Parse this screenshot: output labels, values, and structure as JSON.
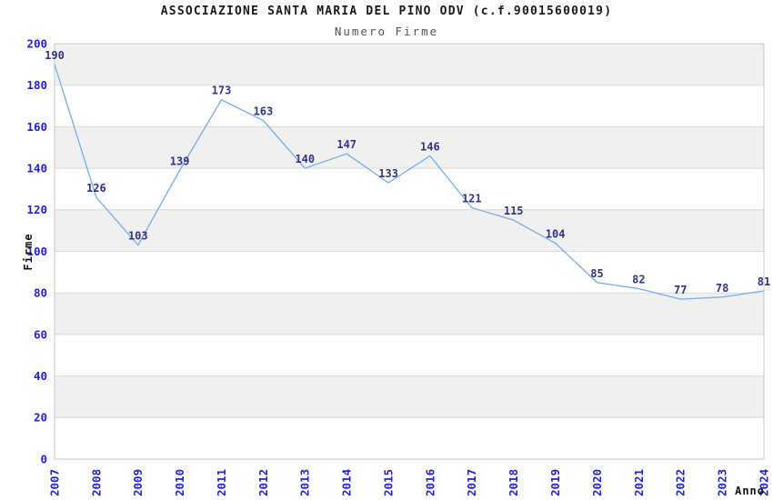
{
  "chart_data": {
    "type": "line",
    "title": "ASSOCIAZIONE SANTA MARIA DEL PINO ODV (c.f.90015600019)",
    "subtitle": "Numero Firme",
    "xlabel": "Anno",
    "ylabel": "Firme",
    "x": [
      "2007",
      "2008",
      "2009",
      "2010",
      "2011",
      "2012",
      "2013",
      "2014",
      "2015",
      "2016",
      "2017",
      "2018",
      "2019",
      "2020",
      "2021",
      "2022",
      "2023",
      "2024"
    ],
    "values": [
      190,
      126,
      103,
      139,
      173,
      163,
      140,
      147,
      133,
      146,
      121,
      115,
      104,
      85,
      82,
      77,
      78,
      81
    ],
    "ylim": [
      0,
      200
    ],
    "ytick_step": 20,
    "grid": "horizontal-alternating-bands",
    "legend": "none",
    "point_labels_visible": true,
    "colors": {
      "line": "#7db1e8",
      "band_gray": "#f0f0f0",
      "band_white": "#ffffff",
      "gridline": "#d9d9d9",
      "plot_border": "#c8c8c8",
      "tick_label": "#2222dd",
      "point_label": "#333388",
      "title": "#1a1a1a",
      "subtitle": "#555555",
      "axis_label": "#111111"
    }
  }
}
